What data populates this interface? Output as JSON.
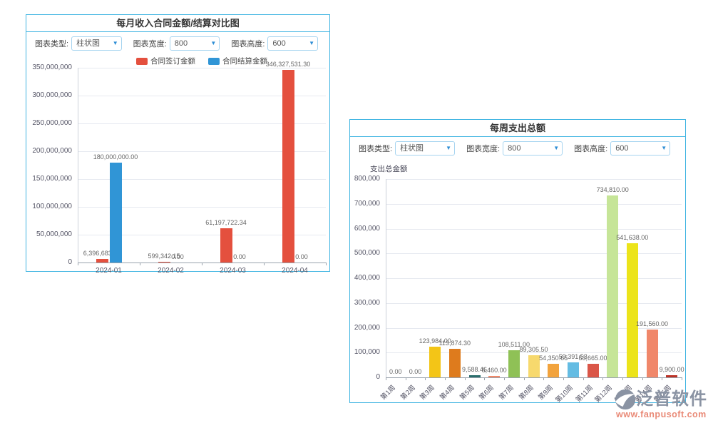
{
  "panels": {
    "income": {
      "title": "每月收入合同金额/结算对比图",
      "controls": {
        "type": {
          "label": "图表类型:",
          "value": "柱状图"
        },
        "width": {
          "label": "图表宽度:",
          "value": "800"
        },
        "height": {
          "label": "图表高度:",
          "value": "600"
        }
      }
    },
    "expense": {
      "title": "每周支出总额",
      "controls": {
        "type": {
          "label": "图表类型:",
          "value": "柱状图"
        },
        "width": {
          "label": "图表宽度:",
          "value": "800"
        },
        "height": {
          "label": "图表高度:",
          "value": "600"
        }
      }
    }
  },
  "logo": {
    "brand": "泛普软件",
    "url": "www.fanpusoft.com"
  },
  "chart_data": [
    {
      "type": "bar",
      "title": "每月收入合同金额/结算对比图",
      "categories": [
        "2024-01",
        "2024-02",
        "2024-03",
        "2024-04"
      ],
      "series": [
        {
          "name": "合同签订金额",
          "color": "#e4503e",
          "values": [
            6396683.5,
            599342.15,
            61197722.34,
            346327531.3
          ],
          "labels": [
            "6,396,683.50",
            "599,342.15",
            "61,197,722.34",
            "346,327,531.30"
          ]
        },
        {
          "name": "合同结算金额",
          "color": "#3095d6",
          "values": [
            180000000.0,
            0,
            0,
            0
          ],
          "labels": [
            "180,000,000.00",
            "0.00",
            "0.00",
            "0.00"
          ]
        }
      ],
      "ylim": [
        0,
        350000000
      ],
      "ytick_labels": [
        "0",
        "50,000,000",
        "100,000,000",
        "150,000,000",
        "200,000,000",
        "250,000,000",
        "300,000,000",
        "350,000,000"
      ],
      "legend_position": "top",
      "grid": true
    },
    {
      "type": "bar",
      "title": "每周支出总额",
      "ylabel": "支出总金额",
      "categories": [
        "第1周",
        "第2周",
        "第3周",
        "第4周",
        "第5周",
        "第6周",
        "第7周",
        "第8周",
        "第9周",
        "第10周",
        "第11周",
        "第12周",
        "第13周",
        "第14周",
        "第15周"
      ],
      "values": [
        0,
        0,
        123984.0,
        113874.3,
        9588.46,
        6460.0,
        108511.0,
        89305.5,
        54350.65,
        59391.53,
        53665.0,
        734810.0,
        541638.0,
        191560.0,
        9900.0
      ],
      "labels": [
        "0.00",
        "0.00",
        "123,984.00",
        "113,874.30",
        "9,588.46",
        "6,460.00",
        "108,511.00",
        "89,305.50",
        "54,350.65",
        "59,391.53",
        "53,665.00",
        "734,810.00",
        "541,638.00",
        "191,560.00",
        "9,900.00"
      ],
      "colors": [
        "#d8d8d8",
        "#d8d8d8",
        "#f3c517",
        "#de7b1d",
        "#2a6e6c",
        "#f28968",
        "#8fc156",
        "#f7d96d",
        "#f2a33d",
        "#64bce3",
        "#da5648",
        "#c6e598",
        "#ece41a",
        "#f0876a",
        "#bb3226"
      ],
      "ylim": [
        0,
        800000
      ],
      "ytick_labels": [
        "0",
        "100,000",
        "200,000",
        "300,000",
        "400,000",
        "500,000",
        "600,000",
        "700,000",
        "800,000"
      ],
      "grid": true,
      "legend_position": "none"
    }
  ]
}
